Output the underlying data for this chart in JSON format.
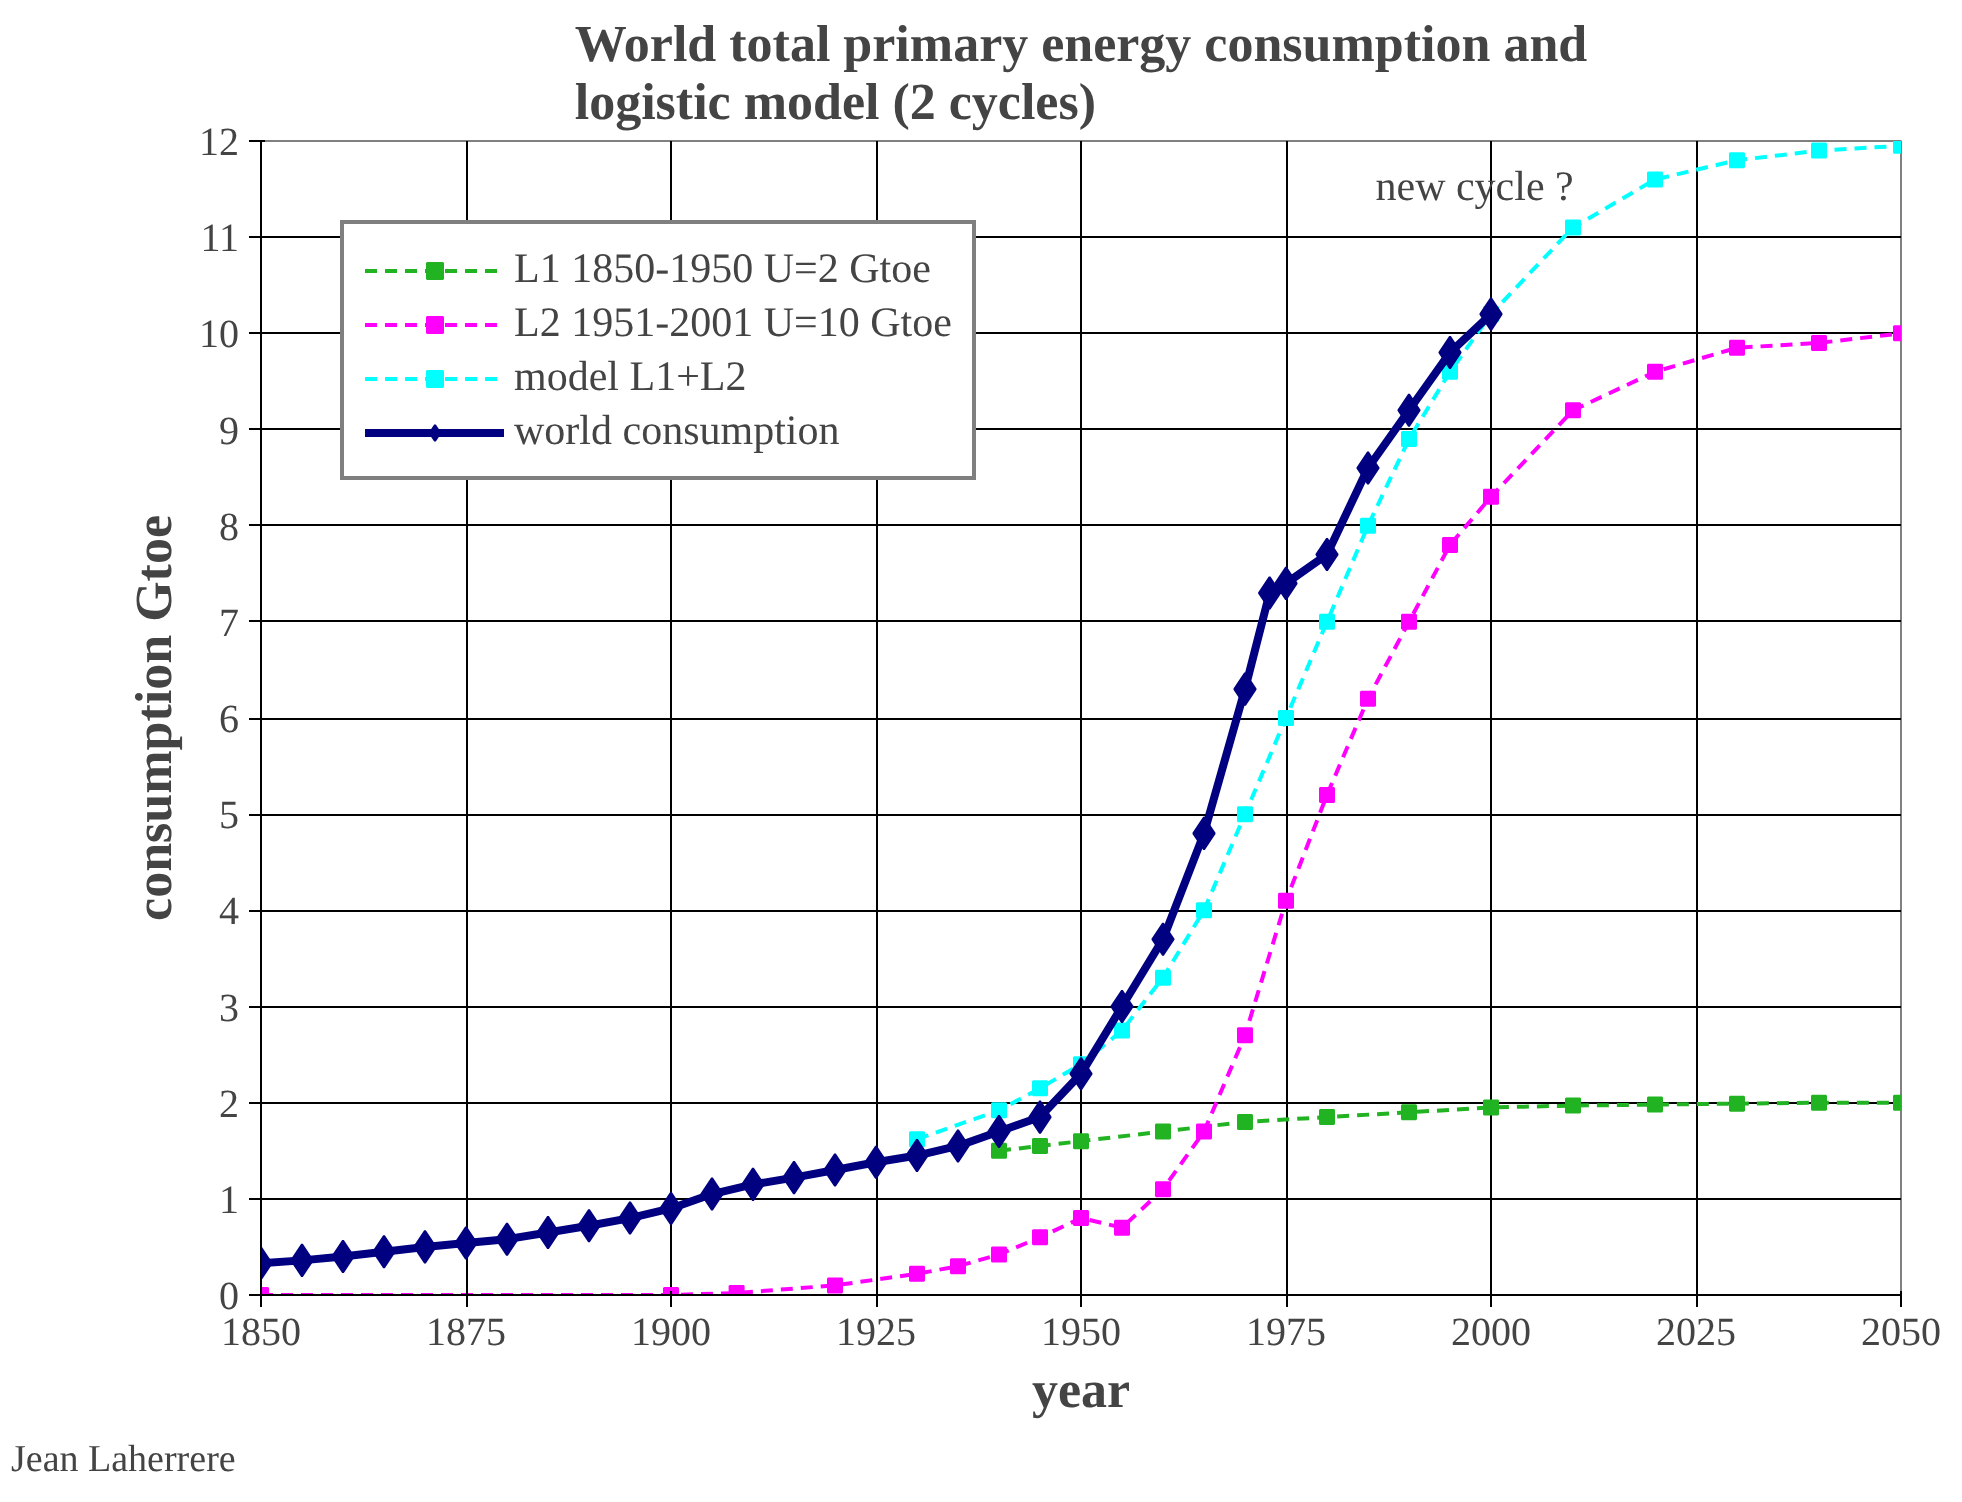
{
  "chart_data": {
    "type": "line",
    "title": "World total primary energy consumption and\nlogistic model (2 cycles)",
    "xlabel": "year",
    "ylabel": "consumption Gtoe",
    "xlim": [
      1850,
      2050
    ],
    "xticks": [
      1850,
      1875,
      1900,
      1925,
      1950,
      1975,
      2000,
      2025,
      2050
    ],
    "ylim": [
      0,
      12
    ],
    "yticks": [
      0,
      1,
      2,
      3,
      4,
      5,
      6,
      7,
      8,
      9,
      10,
      11,
      12
    ],
    "grid": true,
    "legend": "top left",
    "series": [
      {
        "name": "L1 1850-1950 U=2 Gtoe",
        "color": "#22b322",
        "marker": "square",
        "line_style": "dashed",
        "x": [
          1940,
          1945,
          1950,
          1960,
          1970,
          1980,
          1990,
          2000,
          2010,
          2020,
          2030,
          2040,
          2050
        ],
        "values": [
          1.5,
          1.55,
          1.6,
          1.7,
          1.8,
          1.85,
          1.9,
          1.95,
          1.97,
          1.98,
          1.99,
          2.0,
          2.0
        ]
      },
      {
        "name": "L2 1951-2001 U=10 Gtoe",
        "color": "#ff00ff",
        "marker": "square",
        "line_style": "dashed",
        "x": [
          1850,
          1900,
          1908,
          1920,
          1930,
          1935,
          1940,
          1945,
          1950,
          1955,
          1960,
          1965,
          1970,
          1975,
          1980,
          1985,
          1990,
          1995,
          2000,
          2010,
          2020,
          2030,
          2040,
          2050
        ],
        "values": [
          0,
          0,
          0.02,
          0.1,
          0.22,
          0.3,
          0.42,
          0.6,
          0.8,
          0.7,
          1.1,
          1.7,
          2.7,
          4.1,
          5.2,
          6.2,
          7.0,
          7.8,
          8.3,
          9.2,
          9.6,
          9.85,
          9.9,
          10.0
        ]
      },
      {
        "name": "model L1+L2",
        "color": "#00ffff",
        "marker": "square",
        "line_style": "dashed",
        "x": [
          1930,
          1940,
          1945,
          1950,
          1955,
          1960,
          1965,
          1970,
          1975,
          1980,
          1985,
          1990,
          1995,
          2000,
          2010,
          2020,
          2030,
          2040,
          2050
        ],
        "values": [
          1.62,
          1.92,
          2.15,
          2.4,
          2.75,
          3.3,
          4.0,
          5.0,
          6.0,
          7.0,
          8.0,
          8.9,
          9.6,
          10.2,
          11.1,
          11.6,
          11.8,
          11.9,
          11.95
        ]
      },
      {
        "name": "world consumption",
        "color": "#000080",
        "marker": "diamond",
        "line_style": "solid",
        "x": [
          1850,
          1855,
          1860,
          1865,
          1870,
          1875,
          1880,
          1885,
          1890,
          1895,
          1900,
          1905,
          1910,
          1915,
          1920,
          1925,
          1930,
          1935,
          1940,
          1945,
          1950,
          1955,
          1960,
          1965,
          1970,
          1973,
          1975,
          1980,
          1985,
          1990,
          1995,
          2000
        ],
        "values": [
          0.33,
          0.36,
          0.4,
          0.45,
          0.5,
          0.54,
          0.58,
          0.65,
          0.72,
          0.8,
          0.9,
          1.05,
          1.15,
          1.22,
          1.3,
          1.38,
          1.45,
          1.55,
          1.7,
          1.85,
          2.3,
          3.0,
          3.7,
          4.8,
          6.3,
          7.3,
          7.4,
          7.7,
          8.6,
          9.2,
          9.8,
          10.2
        ]
      }
    ],
    "annotations": [
      "new cycle ?",
      "Jean Laherrere"
    ]
  }
}
